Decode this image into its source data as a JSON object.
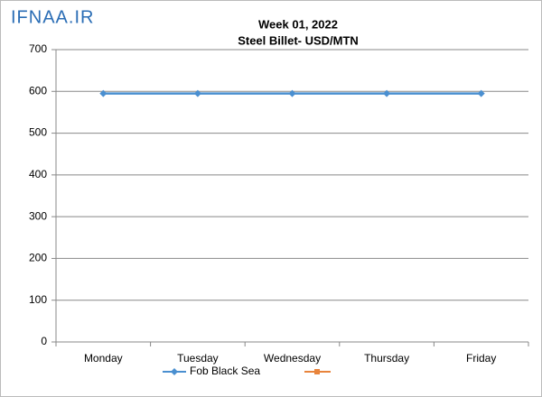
{
  "chart_data": {
    "type": "line",
    "watermark": "IFNAA.IR",
    "title": "Week 01, 2022",
    "subtitle": "Steel Billet- USD/MTN",
    "categories": [
      "Monday",
      "Tuesday",
      "Wednesday",
      "Thursday",
      "Friday"
    ],
    "series": [
      {
        "name": "Fob Black Sea",
        "color": "#4a8fd0",
        "values": [
          595,
          595,
          595,
          595,
          595
        ]
      }
    ],
    "ylim": [
      0,
      700
    ],
    "yticks": [
      0,
      100,
      200,
      300,
      400,
      500,
      600,
      700
    ],
    "grid": true,
    "legend": "bottom"
  }
}
